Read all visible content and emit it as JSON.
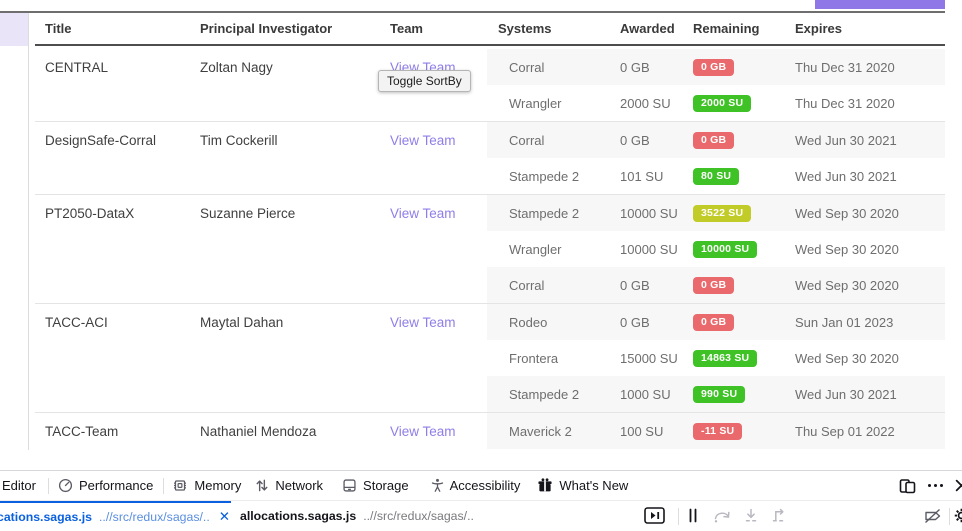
{
  "colors": {
    "accent_purple_bar": "#9077e8",
    "link_purple": "#8f7ee8",
    "badge_red": "#e9696c",
    "badge_green": "#3ec226",
    "badge_yellow": "#c2cc29",
    "devtools_blue": "#0a60df",
    "devtools_blue_light": "#5a8fe0"
  },
  "table": {
    "headers": [
      "Title",
      "Principal Investigator",
      "Team",
      "Systems",
      "Awarded",
      "Remaining",
      "Expires"
    ],
    "team_link_label": "View Team",
    "tooltip_text": "Toggle SortBy",
    "groups": [
      {
        "title": "CENTRAL",
        "pi": "Zoltan Nagy",
        "systems": [
          {
            "system": "Corral",
            "awarded": "0 GB",
            "remaining": "0 GB",
            "status": "red",
            "expires": "Thu Dec 31 2020"
          },
          {
            "system": "Wrangler",
            "awarded": "2000 SU",
            "remaining": "2000 SU",
            "status": "green",
            "expires": "Thu Dec 31 2020"
          }
        ]
      },
      {
        "title": "DesignSafe-Corral",
        "pi": "Tim Cockerill",
        "systems": [
          {
            "system": "Corral",
            "awarded": "0 GB",
            "remaining": "0 GB",
            "status": "red",
            "expires": "Wed Jun 30 2021"
          },
          {
            "system": "Stampede 2",
            "awarded": "101 SU",
            "remaining": "80 SU",
            "status": "green",
            "expires": "Wed Jun 30 2021"
          }
        ]
      },
      {
        "title": "PT2050-DataX",
        "pi": "Suzanne Pierce",
        "systems": [
          {
            "system": "Stampede 2",
            "awarded": "10000 SU",
            "remaining": "3522 SU",
            "status": "yellow",
            "expires": "Wed Sep 30 2020"
          },
          {
            "system": "Wrangler",
            "awarded": "10000 SU",
            "remaining": "10000 SU",
            "status": "green",
            "expires": "Wed Sep 30 2020"
          },
          {
            "system": "Corral",
            "awarded": "0 GB",
            "remaining": "0 GB",
            "status": "red",
            "expires": "Wed Sep 30 2020"
          }
        ]
      },
      {
        "title": "TACC-ACI",
        "pi": "Maytal Dahan",
        "systems": [
          {
            "system": "Rodeo",
            "awarded": "0 GB",
            "remaining": "0 GB",
            "status": "red",
            "expires": "Sun Jan 01 2023"
          },
          {
            "system": "Frontera",
            "awarded": "15000 SU",
            "remaining": "14863 SU",
            "status": "green",
            "expires": "Wed Sep 30 2020"
          },
          {
            "system": "Stampede 2",
            "awarded": "1000 SU",
            "remaining": "990 SU",
            "status": "green",
            "expires": "Wed Jun 30 2021"
          }
        ]
      },
      {
        "title": "TACC-Team",
        "pi": "Nathaniel Mendoza",
        "systems": [
          {
            "system": "Maverick 2",
            "awarded": "100 SU",
            "remaining": "-11 SU",
            "status": "red",
            "expires": "Thu Sep 01 2022"
          }
        ]
      }
    ]
  },
  "devtools": {
    "tabs": [
      {
        "label": "Editor",
        "icon": ""
      },
      {
        "label": "Performance",
        "icon": "performance-icon"
      },
      {
        "label": "Memory",
        "icon": "memory-icon"
      },
      {
        "label": "Network",
        "icon": "network-icon"
      },
      {
        "label": "Storage",
        "icon": "storage-icon"
      },
      {
        "label": "Accessibility",
        "icon": "accessibility-icon"
      },
      {
        "label": "What's New",
        "icon": "whats-new-icon"
      }
    ],
    "window_icons": [
      "responsive-design-icon",
      "menu-dots-icon",
      "close-icon"
    ],
    "source_tabs": [
      {
        "file": "cations.sagas.js",
        "path": "..//src/redux/sagas/..",
        "active": true,
        "close_label": "✕"
      },
      {
        "file": "allocations.sagas.js",
        "path": "..//src/redux/sagas/..",
        "active": false
      }
    ],
    "debugger_icons": [
      "pause-on-next-icon",
      "pause-icon",
      "step-over-icon",
      "step-in-icon",
      "step-out-icon",
      "deactivate-breakpoints-icon",
      "settings-icon"
    ]
  }
}
